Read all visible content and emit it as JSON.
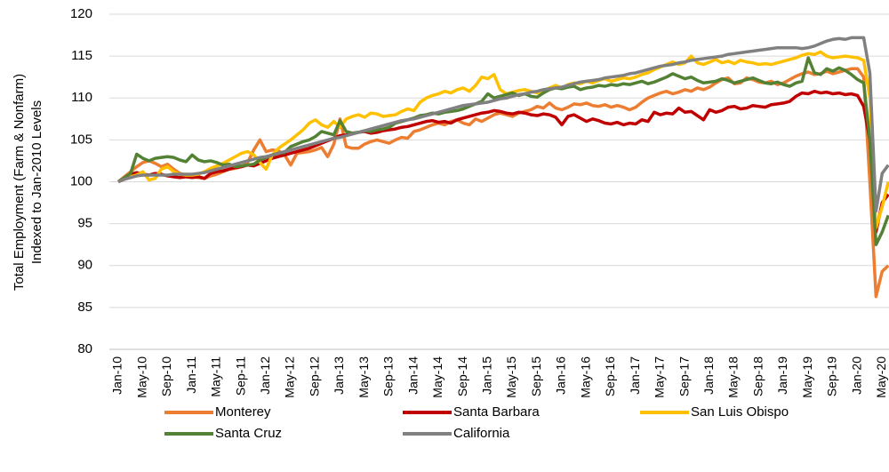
{
  "chart_data": {
    "type": "line",
    "y_label": [
      "Total Employment (Farm & Nonfarm)",
      "Indexed to Jan-2010 Levels"
    ],
    "categories": [
      "Jan-10",
      null,
      null,
      null,
      "May-10",
      null,
      null,
      null,
      "Sep-10",
      null,
      null,
      null,
      "Jan-11",
      null,
      null,
      null,
      "May-11",
      null,
      null,
      null,
      "Sep-11",
      null,
      null,
      null,
      "Jan-12",
      null,
      null,
      null,
      "May-12",
      null,
      null,
      null,
      "Sep-12",
      null,
      null,
      null,
      "Jan-13",
      null,
      null,
      null,
      "May-13",
      null,
      null,
      null,
      "Sep-13",
      null,
      null,
      null,
      "Jan-14",
      null,
      null,
      null,
      "May-14",
      null,
      null,
      null,
      "Sep-14",
      null,
      null,
      null,
      "Jan-15",
      null,
      null,
      null,
      "May-15",
      null,
      null,
      null,
      "Sep-15",
      null,
      null,
      null,
      "Jan-16",
      null,
      null,
      null,
      "May-16",
      null,
      null,
      null,
      "Sep-16",
      null,
      null,
      null,
      "Jan-17",
      null,
      null,
      null,
      "May-17",
      null,
      null,
      null,
      "Sep-17",
      null,
      null,
      null,
      "Jan-18",
      null,
      null,
      null,
      "May-18",
      null,
      null,
      null,
      "Sep-18",
      null,
      null,
      null,
      "Jan-19",
      null,
      null,
      null,
      "May-19",
      null,
      null,
      null,
      "Sep-19",
      null,
      null,
      null,
      "Jan-20",
      null,
      null,
      null,
      "May-20",
      null
    ],
    "series": [
      {
        "name": "Monterey",
        "color": "#ed7d31",
        "values": [
          100,
          100.6,
          101.2,
          101.8,
          102.3,
          102.5,
          102.2,
          101.8,
          102.1,
          101.5,
          101,
          100.8,
          100.6,
          100.5,
          100.4,
          100.7,
          100.9,
          101.2,
          101.5,
          101.6,
          101.8,
          102.3,
          103.8,
          105,
          103.6,
          103.8,
          103.7,
          103.2,
          102,
          103.4,
          103.5,
          103.6,
          103.8,
          104.1,
          103,
          104.5,
          107.5,
          104.2,
          104,
          104,
          104.5,
          104.8,
          105,
          104.8,
          104.6,
          105,
          105.3,
          105.2,
          106,
          106.2,
          106.5,
          106.8,
          107,
          106.8,
          107.2,
          107.4,
          107,
          106.8,
          107.5,
          107.2,
          107.6,
          108,
          108.2,
          108,
          107.8,
          108.2,
          108.4,
          108.6,
          109,
          108.8,
          109.4,
          108.8,
          108.6,
          108.9,
          109.3,
          109.2,
          109.4,
          109.1,
          109,
          109.2,
          108.9,
          109.1,
          108.9,
          108.6,
          108.9,
          109.5,
          110,
          110.3,
          110.6,
          110.8,
          110.5,
          110.7,
          111,
          110.8,
          111.2,
          111,
          111.3,
          111.8,
          112.2,
          112.4,
          111.7,
          111.8,
          112.4,
          112.2,
          111.9,
          111.8,
          112,
          111.6,
          111.8,
          112.2,
          112.6,
          112.9,
          113.1,
          112.8,
          112.9,
          113.2,
          112.9,
          113.1,
          113.3,
          113.5,
          113.5,
          112.5,
          100,
          86.3,
          89.3,
          90
        ]
      },
      {
        "name": "Santa Barbara",
        "color": "#c00000",
        "values": [
          100,
          100.3,
          100.9,
          101.1,
          100.9,
          100.8,
          101,
          100.9,
          100.7,
          100.6,
          100.5,
          100.6,
          100.5,
          100.6,
          100.4,
          101,
          101.2,
          101.3,
          101.5,
          101.7,
          101.8,
          102,
          101.9,
          102.2,
          102.5,
          102.8,
          103,
          103.2,
          103.4,
          103.6,
          103.8,
          104,
          104.3,
          104.6,
          104.9,
          105.2,
          105.5,
          105.6,
          105.8,
          105.9,
          106,
          105.8,
          105.9,
          106.1,
          106.2,
          106.3,
          106.5,
          106.6,
          106.8,
          107,
          107.2,
          107.3,
          107.1,
          107.2,
          107,
          107.4,
          107.6,
          107.8,
          108,
          108.2,
          108.3,
          108.5,
          108.4,
          108.2,
          108.1,
          108.3,
          108.2,
          108,
          107.9,
          108.1,
          108,
          107.7,
          106.8,
          107.8,
          108,
          107.6,
          107.2,
          107.5,
          107.3,
          107,
          106.9,
          107.1,
          106.8,
          107,
          106.9,
          107.4,
          107.2,
          108.3,
          108,
          108.2,
          108.1,
          108.8,
          108.3,
          108.4,
          107.9,
          107.4,
          108.6,
          108.3,
          108.5,
          108.9,
          109,
          108.7,
          108.8,
          109.1,
          109,
          108.9,
          109.2,
          109.3,
          109.4,
          109.6,
          110.2,
          110.6,
          110.5,
          110.8,
          110.6,
          110.7,
          110.5,
          110.6,
          110.4,
          110.5,
          110.3,
          109,
          105,
          94,
          97.5,
          98.5
        ]
      },
      {
        "name": "San Luis Obispo",
        "color": "#ffc000",
        "values": [
          100,
          100.4,
          100.6,
          100.8,
          101.2,
          100.2,
          100.4,
          101.5,
          101.8,
          101.2,
          100.9,
          100.8,
          100.8,
          100.9,
          101.2,
          101.6,
          101.9,
          102.2,
          102.6,
          103,
          103.4,
          103.6,
          103.2,
          102.3,
          101.5,
          103.2,
          104,
          104.5,
          105,
          105.6,
          106.2,
          107,
          107.4,
          106.8,
          106.5,
          107.2,
          106.5,
          107.5,
          107.8,
          108,
          107.7,
          108.2,
          108.1,
          107.8,
          107.9,
          108,
          108.4,
          108.7,
          108.5,
          109.5,
          110,
          110.3,
          110.5,
          110.8,
          110.6,
          111,
          111.2,
          110.8,
          111.5,
          112.5,
          112.3,
          112.8,
          111,
          110.5,
          110.7,
          110.9,
          111,
          110.8,
          110.6,
          110.9,
          111.2,
          111.5,
          111.2,
          111.6,
          111.8,
          111.7,
          112,
          111.8,
          112.1,
          112.3,
          112,
          112.2,
          112.4,
          112.3,
          112.5,
          112.8,
          113,
          113.4,
          113.7,
          114,
          114.3,
          114,
          114.2,
          115,
          114.2,
          114,
          114.3,
          114.6,
          114.2,
          114.4,
          114.1,
          114.5,
          114.3,
          114.2,
          114,
          114.1,
          114,
          114.2,
          114.4,
          114.6,
          114.8,
          115.1,
          115.3,
          115.2,
          115.5,
          115,
          114.8,
          114.9,
          115,
          114.9,
          114.8,
          114.5,
          110,
          94.5,
          97,
          100
        ]
      },
      {
        "name": "Santa Cruz",
        "color": "#548235",
        "values": [
          100,
          100.5,
          101,
          103.3,
          102.8,
          102.5,
          102.8,
          102.9,
          103,
          102.9,
          102.6,
          102.4,
          103.2,
          102.6,
          102.4,
          102.5,
          102.3,
          102,
          102.1,
          101.8,
          101.9,
          102,
          102.1,
          102.6,
          102.9,
          103.2,
          103.4,
          103.5,
          104.2,
          104.5,
          104.8,
          105,
          105.4,
          106,
          105.8,
          105.6,
          107.3,
          106,
          105.8,
          105.9,
          106.1,
          106,
          106.2,
          106.3,
          106.5,
          107,
          107.2,
          107.4,
          107.6,
          107.9,
          108,
          108.2,
          108.1,
          108.3,
          108.4,
          108.5,
          108.7,
          109,
          109.3,
          109.6,
          110.5,
          110,
          110.2,
          110.4,
          110.6,
          110.3,
          110.5,
          110.2,
          110.1,
          110.6,
          111,
          111.2,
          111.1,
          111.3,
          111.4,
          111,
          111.2,
          111.3,
          111.5,
          111.4,
          111.6,
          111.5,
          111.7,
          111.6,
          111.8,
          112,
          111.7,
          111.9,
          112.2,
          112.5,
          112.9,
          112.6,
          112.3,
          112.5,
          112.1,
          111.8,
          111.9,
          112,
          112.3,
          112.1,
          111.8,
          112,
          112.2,
          112.4,
          112.1,
          111.8,
          111.7,
          111.9,
          111.6,
          111.4,
          111.8,
          112,
          114.8,
          113,
          112.8,
          113.5,
          113.2,
          113.6,
          113.3,
          112.8,
          112.2,
          111.8,
          105,
          92.5,
          94,
          96
        ]
      },
      {
        "name": "California",
        "color": "#808080",
        "values": [
          100,
          100.3,
          100.5,
          100.7,
          100.8,
          100.8,
          100.8,
          100.8,
          100.8,
          100.9,
          100.9,
          100.9,
          100.9,
          101,
          101.1,
          101.3,
          101.5,
          101.7,
          101.9,
          102.1,
          102.3,
          102.5,
          102.7,
          102.9,
          103,
          103.2,
          103.4,
          103.6,
          103.8,
          104,
          104.2,
          104.4,
          104.6,
          104.8,
          105,
          105.2,
          105.3,
          105.5,
          105.7,
          105.9,
          106.1,
          106.3,
          106.5,
          106.7,
          106.9,
          107.1,
          107.3,
          107.4,
          107.5,
          107.7,
          107.9,
          108.1,
          108.3,
          108.5,
          108.7,
          108.9,
          109.1,
          109.2,
          109.3,
          109.4,
          109.5,
          109.7,
          109.9,
          110,
          110.2,
          110.4,
          110.5,
          110.7,
          110.8,
          111,
          111.1,
          111.2,
          111.3,
          111.5,
          111.7,
          111.9,
          112,
          112.1,
          112.2,
          112.4,
          112.5,
          112.6,
          112.7,
          112.9,
          113,
          113.2,
          113.4,
          113.6,
          113.8,
          113.9,
          114,
          114.2,
          114.3,
          114.5,
          114.6,
          114.7,
          114.8,
          114.9,
          115,
          115.2,
          115.3,
          115.4,
          115.5,
          115.6,
          115.7,
          115.8,
          115.9,
          116,
          116,
          116,
          116,
          115.9,
          116,
          116.2,
          116.5,
          116.8,
          117,
          117.1,
          117,
          117.2,
          117.2,
          117.2,
          113,
          96.5,
          101,
          102
        ]
      }
    ],
    "ylim": [
      80,
      120
    ],
    "yticks": [
      80,
      85,
      90,
      95,
      100,
      105,
      110,
      115,
      120
    ],
    "grid": true
  }
}
